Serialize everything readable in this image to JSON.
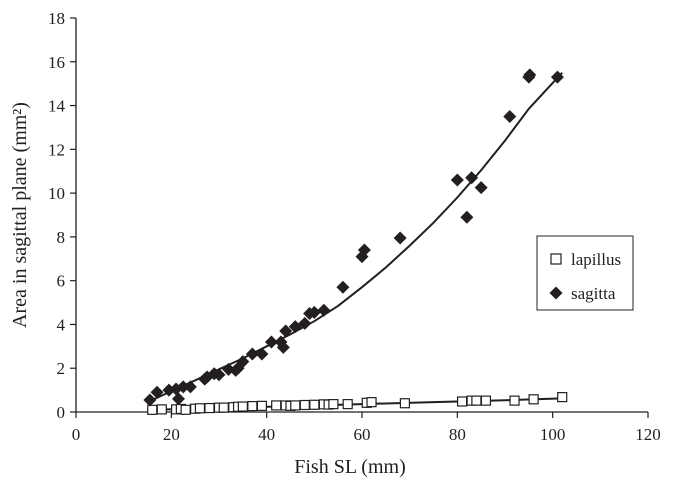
{
  "chart_data": {
    "type": "scatter",
    "xlabel": "Fish SL (mm)",
    "ylabel": "Area in sagittal plane (mm²)",
    "xlim": [
      0,
      120
    ],
    "ylim": [
      0,
      18
    ],
    "x_ticks": [
      "0",
      "20",
      "40",
      "60",
      "80",
      "100",
      "120"
    ],
    "y_ticks": [
      "0",
      "2",
      "4",
      "6",
      "8",
      "10",
      "12",
      "14",
      "16",
      "18"
    ],
    "grid": false,
    "legend_position": "right",
    "series": [
      {
        "name": "lapillus",
        "marker": "open-square",
        "color": "#231f20",
        "points": [
          [
            16,
            0.1
          ],
          [
            18,
            0.12
          ],
          [
            21,
            0.12
          ],
          [
            22,
            0.14
          ],
          [
            23,
            0.1
          ],
          [
            25,
            0.15
          ],
          [
            26,
            0.17
          ],
          [
            28,
            0.18
          ],
          [
            30,
            0.2
          ],
          [
            31,
            0.2
          ],
          [
            33,
            0.22
          ],
          [
            34,
            0.24
          ],
          [
            35,
            0.25
          ],
          [
            37,
            0.27
          ],
          [
            39,
            0.28
          ],
          [
            42,
            0.3
          ],
          [
            44,
            0.3
          ],
          [
            45,
            0.28
          ],
          [
            46,
            0.3
          ],
          [
            48,
            0.32
          ],
          [
            50,
            0.33
          ],
          [
            52,
            0.35
          ],
          [
            53,
            0.34
          ],
          [
            54,
            0.36
          ],
          [
            57,
            0.36
          ],
          [
            61,
            0.42
          ],
          [
            62,
            0.45
          ],
          [
            69,
            0.4
          ],
          [
            81,
            0.48
          ],
          [
            83,
            0.52
          ],
          [
            84,
            0.52
          ],
          [
            86,
            0.52
          ],
          [
            92,
            0.52
          ],
          [
            96,
            0.58
          ],
          [
            102,
            0.68
          ]
        ],
        "trend": [
          [
            16,
            0.1
          ],
          [
            30,
            0.18
          ],
          [
            45,
            0.27
          ],
          [
            60,
            0.36
          ],
          [
            75,
            0.45
          ],
          [
            90,
            0.54
          ],
          [
            102,
            0.62
          ]
        ]
      },
      {
        "name": "sagitta",
        "marker": "filled-diamond",
        "color": "#231f20",
        "points": [
          [
            15.5,
            0.55
          ],
          [
            17,
            0.9
          ],
          [
            19.5,
            1.0
          ],
          [
            21,
            1.05
          ],
          [
            21.5,
            0.6
          ],
          [
            22.5,
            1.15
          ],
          [
            24,
            1.15
          ],
          [
            27,
            1.5
          ],
          [
            27.5,
            1.6
          ],
          [
            29,
            1.75
          ],
          [
            30,
            1.7
          ],
          [
            32,
            1.95
          ],
          [
            33.5,
            1.9
          ],
          [
            34,
            2.0
          ],
          [
            35,
            2.3
          ],
          [
            37,
            2.65
          ],
          [
            39,
            2.65
          ],
          [
            41,
            3.2
          ],
          [
            43,
            3.2
          ],
          [
            43.5,
            2.95
          ],
          [
            44,
            3.7
          ],
          [
            46,
            3.9
          ],
          [
            48,
            4.05
          ],
          [
            49,
            4.5
          ],
          [
            50,
            4.55
          ],
          [
            52,
            4.65
          ],
          [
            56,
            5.7
          ],
          [
            60,
            7.1
          ],
          [
            60.5,
            7.4
          ],
          [
            68,
            7.95
          ],
          [
            80,
            10.6
          ],
          [
            82,
            8.9
          ],
          [
            83,
            10.7
          ],
          [
            85,
            10.25
          ],
          [
            91,
            13.5
          ],
          [
            95,
            15.3
          ],
          [
            95.2,
            15.4
          ],
          [
            101,
            15.3
          ]
        ],
        "trend": [
          [
            15,
            0.45
          ],
          [
            20,
            0.95
          ],
          [
            25,
            1.45
          ],
          [
            30,
            1.95
          ],
          [
            35,
            2.45
          ],
          [
            40,
            3.0
          ],
          [
            45,
            3.55
          ],
          [
            50,
            4.15
          ],
          [
            55,
            4.85
          ],
          [
            60,
            5.7
          ],
          [
            65,
            6.6
          ],
          [
            70,
            7.6
          ],
          [
            75,
            8.65
          ],
          [
            80,
            9.8
          ],
          [
            85,
            11.05
          ],
          [
            90,
            12.4
          ],
          [
            95,
            13.85
          ],
          [
            102,
            15.5
          ]
        ]
      }
    ]
  }
}
